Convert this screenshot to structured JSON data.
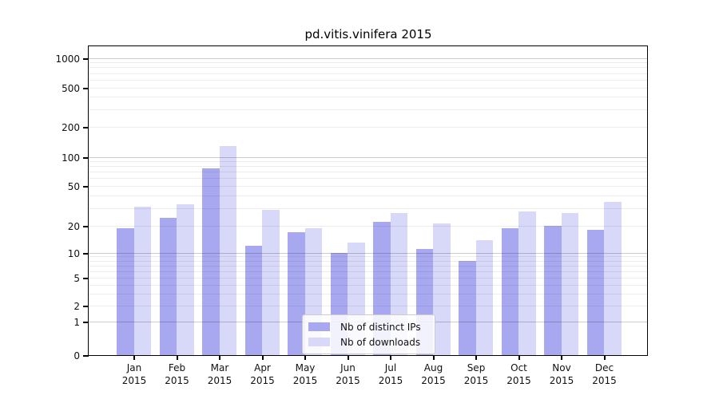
{
  "chart_data": {
    "type": "bar",
    "title": "pd.vitis.vinifera 2015",
    "categories": [
      "Jan",
      "Feb",
      "Mar",
      "Apr",
      "May",
      "Jun",
      "Jul",
      "Aug",
      "Sep",
      "Oct",
      "Nov",
      "Dec"
    ],
    "category_year": "2015",
    "series": [
      {
        "name": "Nb of distinct IPs",
        "color": "#a8a8f0",
        "values": [
          19,
          24,
          76,
          12,
          17,
          10,
          22,
          11,
          8,
          19,
          20,
          18
        ]
      },
      {
        "name": "Nb of downloads",
        "color": "#d8d8f8",
        "values": [
          31,
          33,
          130,
          29,
          19,
          13,
          27,
          21,
          14,
          28,
          27,
          35
        ]
      }
    ],
    "xlabel": "",
    "ylabel": "",
    "scale": "log1p",
    "ylim": [
      0,
      1300
    ],
    "y_ticks": [
      0,
      1,
      2,
      5,
      10,
      20,
      50,
      100,
      200,
      500,
      1000
    ],
    "y_major_gridlines": [
      1,
      10,
      100,
      1000
    ],
    "y_minor_gridlines": [
      2,
      3,
      4,
      5,
      6,
      7,
      8,
      9,
      20,
      30,
      40,
      50,
      60,
      70,
      80,
      90,
      200,
      300,
      400,
      500,
      600,
      700,
      800,
      900
    ],
    "grid": true,
    "legend_position": "inside-bottom-center",
    "colors": {
      "frame": "#000000",
      "grid_major": "#cfcfcf",
      "grid_minor": "#ededed",
      "legend_border": "#cccccc",
      "text": "#111111"
    }
  }
}
